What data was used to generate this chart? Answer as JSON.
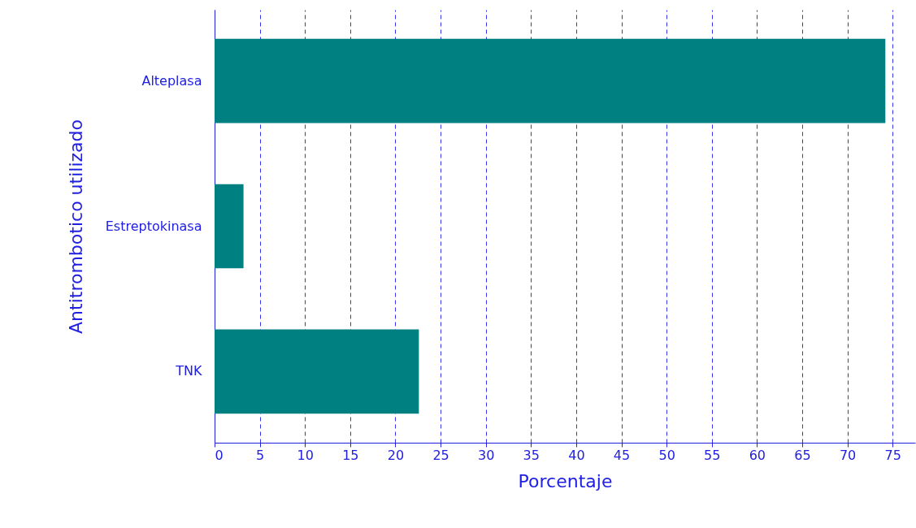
{
  "chart_data": {
    "type": "bar",
    "orientation": "horizontal",
    "xlabel": "Porcentaje",
    "ylabel": "Antitrombotico utilizado",
    "categories": [
      "Alteplasa",
      "Estreptokinasa",
      "TNK"
    ],
    "values": [
      74.2,
      3.2,
      22.6
    ],
    "color": "#008080",
    "xlim": [
      0,
      77.5
    ],
    "xticks": [
      0,
      5,
      10,
      15,
      20,
      25,
      30,
      35,
      40,
      45,
      50,
      55,
      60,
      65,
      70,
      75
    ],
    "grid": "x",
    "line_style": "dashed"
  }
}
